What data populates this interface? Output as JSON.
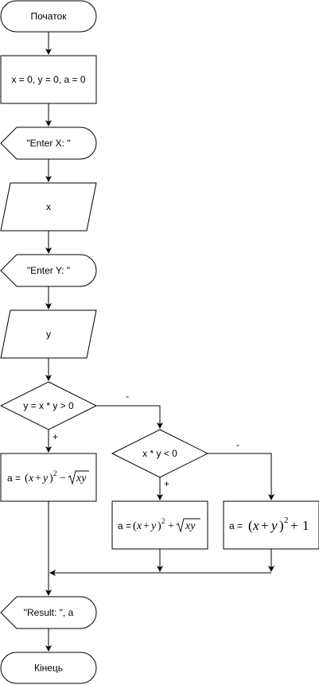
{
  "nodes": {
    "start": "Початок",
    "init": "x = 0, y = 0, a = 0",
    "prompt_x": "\"Enter X: \"",
    "input_x": "x",
    "prompt_y": "\"Enter Y: \"",
    "input_y": "y",
    "decision_1": "y = x * y > 0",
    "decision_2": "x * y < 0",
    "assign_1_prefix": "a =",
    "assign_2_prefix": "a =",
    "assign_3_prefix": "a =",
    "output": "\"Result: \", a",
    "end": "Кінець"
  },
  "edge_labels": {
    "d1_no": "-",
    "d1_yes": "+",
    "d2_yes": "+",
    "d2_no": "-"
  }
}
